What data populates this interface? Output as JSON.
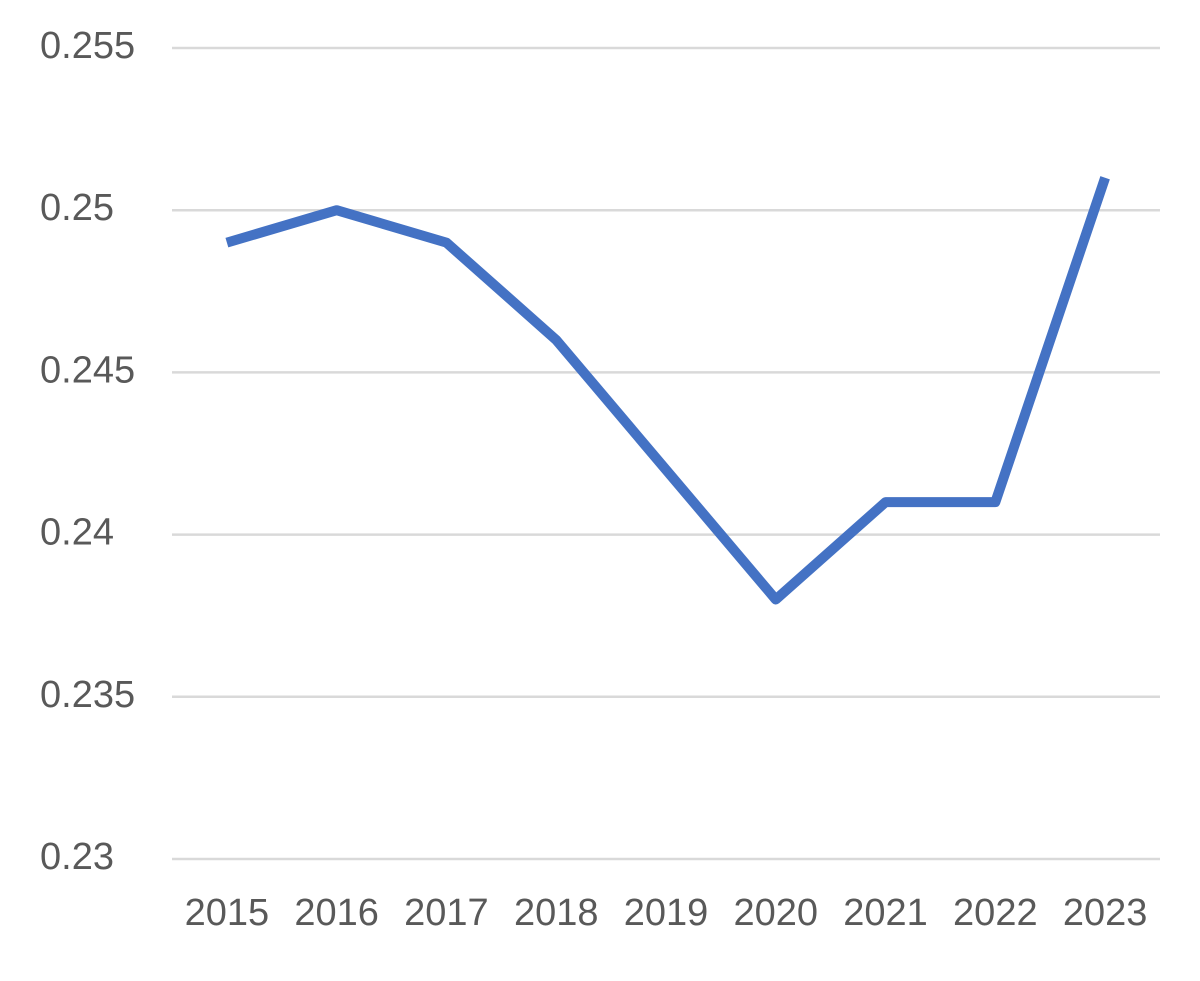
{
  "chart_data": {
    "type": "line",
    "categories": [
      "2015",
      "2016",
      "2017",
      "2018",
      "2019",
      "2020",
      "2021",
      "2022",
      "2023"
    ],
    "values": [
      0.249,
      0.25,
      0.249,
      0.246,
      0.242,
      0.238,
      0.241,
      0.241,
      0.251
    ],
    "color": "#4472c4",
    "ylim": [
      0.23,
      0.255
    ],
    "yticks": [
      0.23,
      0.235,
      0.24,
      0.245,
      0.25,
      0.255
    ],
    "grid": true
  }
}
